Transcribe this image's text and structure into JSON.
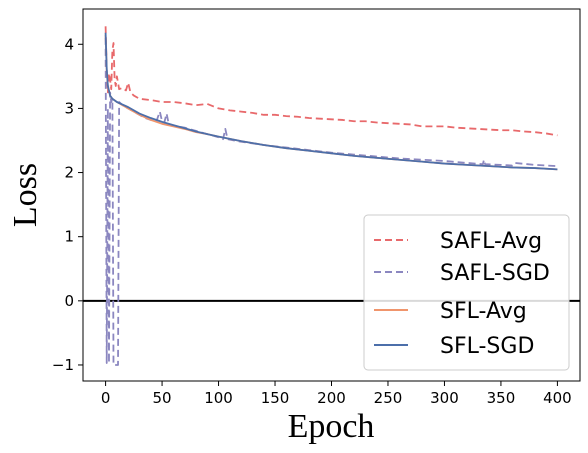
{
  "chart_data": {
    "type": "line",
    "xlabel": "Epoch",
    "ylabel": "Loss",
    "xlim": [
      -20,
      420
    ],
    "ylim": [
      -1.25,
      4.55
    ],
    "xticks": [
      0,
      50,
      100,
      150,
      200,
      250,
      300,
      350,
      400
    ],
    "yticks": [
      -1,
      0,
      1,
      2,
      3,
      4
    ],
    "grid": false,
    "legend_position": "lower-right",
    "reference_line": {
      "y": 0,
      "color": "#000000"
    },
    "series": [
      {
        "name": "SAFL-Avg",
        "color": "#e8696b",
        "dash": "dashed",
        "points": [
          [
            0,
            4.28
          ],
          [
            1,
            3.6
          ],
          [
            2,
            3.25
          ],
          [
            3,
            3.55
          ],
          [
            4,
            3.45
          ],
          [
            5,
            3.3
          ],
          [
            6,
            3.9
          ],
          [
            7,
            4.02
          ],
          [
            8,
            3.45
          ],
          [
            9,
            3.35
          ],
          [
            10,
            3.5
          ],
          [
            12,
            3.3
          ],
          [
            15,
            3.32
          ],
          [
            18,
            3.28
          ],
          [
            20,
            3.4
          ],
          [
            22,
            3.25
          ],
          [
            25,
            3.2
          ],
          [
            30,
            3.15
          ],
          [
            40,
            3.13
          ],
          [
            50,
            3.1
          ],
          [
            60,
            3.1
          ],
          [
            70,
            3.08
          ],
          [
            80,
            3.05
          ],
          [
            90,
            3.07
          ],
          [
            100,
            3.0
          ],
          [
            110,
            2.97
          ],
          [
            120,
            2.95
          ],
          [
            130,
            2.93
          ],
          [
            140,
            2.9
          ],
          [
            150,
            2.9
          ],
          [
            160,
            2.88
          ],
          [
            170,
            2.87
          ],
          [
            180,
            2.85
          ],
          [
            190,
            2.84
          ],
          [
            200,
            2.83
          ],
          [
            210,
            2.82
          ],
          [
            220,
            2.8
          ],
          [
            230,
            2.8
          ],
          [
            240,
            2.78
          ],
          [
            250,
            2.77
          ],
          [
            260,
            2.76
          ],
          [
            270,
            2.75
          ],
          [
            280,
            2.72
          ],
          [
            290,
            2.72
          ],
          [
            300,
            2.72
          ],
          [
            310,
            2.7
          ],
          [
            320,
            2.69
          ],
          [
            330,
            2.68
          ],
          [
            340,
            2.67
          ],
          [
            350,
            2.66
          ],
          [
            360,
            2.66
          ],
          [
            370,
            2.64
          ],
          [
            380,
            2.63
          ],
          [
            390,
            2.61
          ],
          [
            400,
            2.58
          ]
        ]
      },
      {
        "name": "SAFL-SGD",
        "color": "#8b87c0",
        "dash": "dashed",
        "points": [
          [
            0,
            4.1
          ],
          [
            1,
            -0.97
          ],
          [
            2,
            3.0
          ],
          [
            3,
            -0.97
          ],
          [
            4,
            3.25
          ],
          [
            5,
            3.1
          ],
          [
            6,
            3.15
          ],
          [
            7,
            -1.0
          ],
          [
            8,
            -1.0
          ],
          [
            10,
            -1.0
          ],
          [
            11,
            -1.0
          ],
          [
            12,
            3.1
          ],
          [
            15,
            3.05
          ],
          [
            20,
            3.0
          ],
          [
            25,
            2.95
          ],
          [
            30,
            2.9
          ],
          [
            35,
            2.85
          ],
          [
            40,
            2.82
          ],
          [
            45,
            2.8
          ],
          [
            48,
            2.95
          ],
          [
            50,
            2.8
          ],
          [
            52,
            2.78
          ],
          [
            54,
            2.92
          ],
          [
            56,
            2.75
          ],
          [
            60,
            2.73
          ],
          [
            70,
            2.7
          ],
          [
            80,
            2.65
          ],
          [
            90,
            2.6
          ],
          [
            100,
            2.55
          ],
          [
            104,
            2.52
          ],
          [
            106,
            2.68
          ],
          [
            108,
            2.52
          ],
          [
            120,
            2.48
          ],
          [
            140,
            2.43
          ],
          [
            160,
            2.39
          ],
          [
            180,
            2.35
          ],
          [
            200,
            2.31
          ],
          [
            220,
            2.28
          ],
          [
            240,
            2.25
          ],
          [
            260,
            2.22
          ],
          [
            280,
            2.2
          ],
          [
            300,
            2.18
          ],
          [
            320,
            2.15
          ],
          [
            334,
            2.13
          ],
          [
            335,
            2.2
          ],
          [
            336,
            2.13
          ],
          [
            350,
            2.12
          ],
          [
            360,
            2.11
          ],
          [
            362,
            2.15
          ],
          [
            380,
            2.12
          ],
          [
            400,
            2.1
          ]
        ]
      },
      {
        "name": "SFL-Avg",
        "color": "#f0956c",
        "dash": "solid",
        "points": [
          [
            0,
            4.15
          ],
          [
            1,
            3.6
          ],
          [
            2,
            3.35
          ],
          [
            4,
            3.2
          ],
          [
            6,
            3.15
          ],
          [
            10,
            3.1
          ],
          [
            15,
            3.05
          ],
          [
            20,
            3.0
          ],
          [
            30,
            2.9
          ],
          [
            40,
            2.82
          ],
          [
            50,
            2.76
          ],
          [
            60,
            2.72
          ],
          [
            70,
            2.68
          ],
          [
            80,
            2.63
          ],
          [
            90,
            2.6
          ],
          [
            100,
            2.56
          ],
          [
            120,
            2.49
          ],
          [
            140,
            2.43
          ],
          [
            160,
            2.38
          ],
          [
            180,
            2.34
          ],
          [
            200,
            2.3
          ],
          [
            220,
            2.26
          ],
          [
            240,
            2.23
          ],
          [
            260,
            2.2
          ],
          [
            280,
            2.17
          ],
          [
            300,
            2.14
          ],
          [
            320,
            2.12
          ],
          [
            340,
            2.1
          ],
          [
            360,
            2.08
          ],
          [
            380,
            2.07
          ],
          [
            400,
            2.05
          ]
        ]
      },
      {
        "name": "SFL-SGD",
        "color": "#4c6faa",
        "dash": "solid",
        "points": [
          [
            0,
            4.18
          ],
          [
            1,
            3.62
          ],
          [
            2,
            3.35
          ],
          [
            4,
            3.2
          ],
          [
            6,
            3.15
          ],
          [
            10,
            3.1
          ],
          [
            15,
            3.06
          ],
          [
            20,
            3.02
          ],
          [
            30,
            2.92
          ],
          [
            40,
            2.85
          ],
          [
            50,
            2.79
          ],
          [
            60,
            2.74
          ],
          [
            70,
            2.69
          ],
          [
            80,
            2.64
          ],
          [
            90,
            2.6
          ],
          [
            100,
            2.56
          ],
          [
            120,
            2.49
          ],
          [
            140,
            2.43
          ],
          [
            160,
            2.38
          ],
          [
            180,
            2.34
          ],
          [
            200,
            2.3
          ],
          [
            220,
            2.26
          ],
          [
            240,
            2.23
          ],
          [
            260,
            2.2
          ],
          [
            280,
            2.17
          ],
          [
            300,
            2.14
          ],
          [
            320,
            2.12
          ],
          [
            340,
            2.1
          ],
          [
            360,
            2.08
          ],
          [
            380,
            2.07
          ],
          [
            400,
            2.05
          ]
        ]
      }
    ]
  }
}
